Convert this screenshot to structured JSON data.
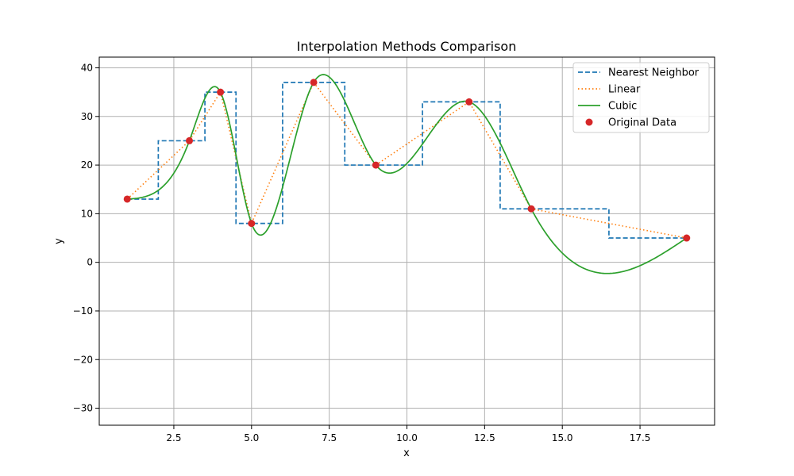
{
  "chart_data": {
    "type": "line",
    "title": "Interpolation Methods Comparison",
    "xlabel": "x",
    "ylabel": "y",
    "xlim": [
      0.1,
      19.9
    ],
    "ylim": [
      -33.5,
      42.2
    ],
    "grid": true,
    "legend_position": "top-right",
    "x_ticks": [
      2.5,
      5.0,
      7.5,
      10.0,
      12.5,
      15.0,
      17.5
    ],
    "x_tick_labels": [
      "2.5",
      "5.0",
      "7.5",
      "10.0",
      "12.5",
      "15.0",
      "17.5"
    ],
    "y_ticks": [
      -30,
      -20,
      -10,
      0,
      10,
      20,
      30,
      40
    ],
    "y_tick_labels": [
      "−30",
      "−20",
      "−10",
      "0",
      "10",
      "20",
      "30",
      "40"
    ],
    "original_data": {
      "x": [
        1,
        3,
        4,
        5,
        7,
        9,
        12,
        14,
        19
      ],
      "y": [
        13,
        25,
        35,
        8,
        37,
        20,
        33,
        11,
        5
      ]
    },
    "series": [
      {
        "name": "Nearest Neighbor",
        "kind": "nearest",
        "color": "#1f77b4",
        "dash": "6,3"
      },
      {
        "name": "Linear",
        "kind": "linear",
        "color": "#ff7f0e",
        "dash": "1.5,3"
      },
      {
        "name": "Cubic",
        "kind": "cubic",
        "color": "#2ca02c",
        "dash": ""
      },
      {
        "name": "Original Data",
        "kind": "points",
        "color": "#d62728",
        "dash": ""
      }
    ]
  }
}
